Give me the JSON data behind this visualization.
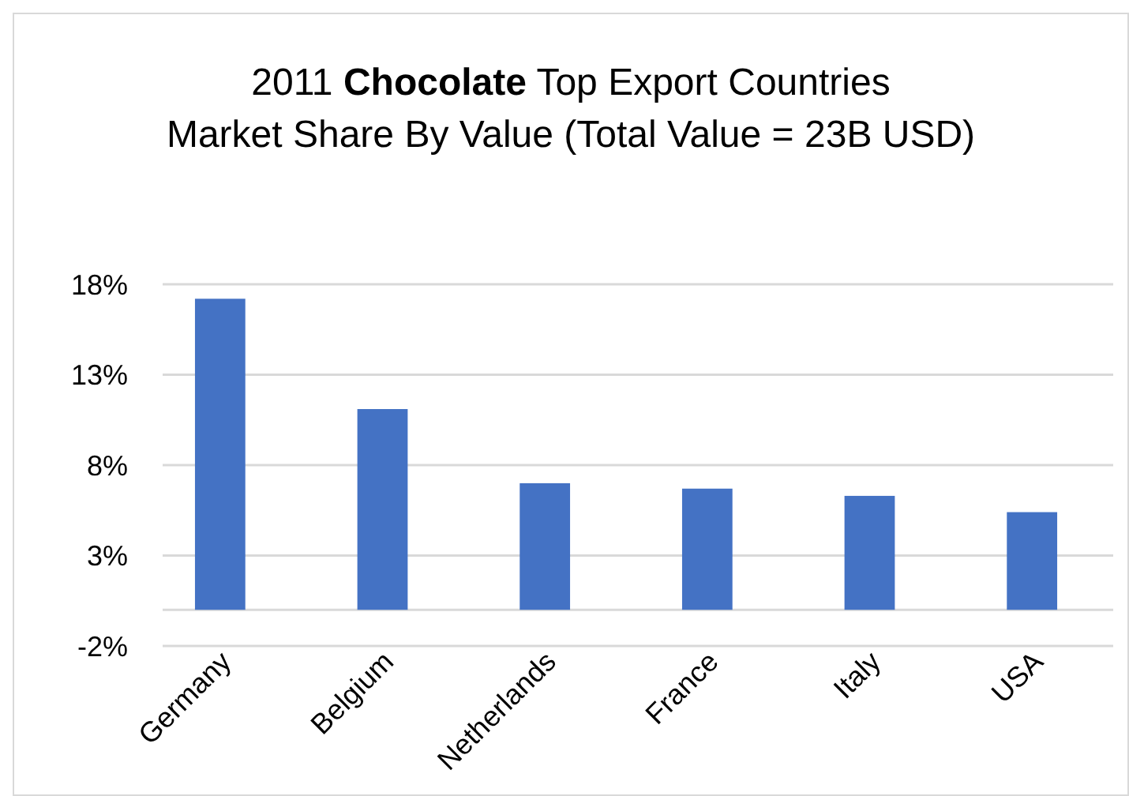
{
  "chart_data": {
    "type": "bar",
    "title": "2011 Chocolate Top Export Countries Market Share By Value (Total Value = 23B USD)",
    "categories": [
      "Germany",
      "Belgium",
      "Netherlands",
      "France",
      "Italy",
      "USA"
    ],
    "values": [
      17.2,
      11.1,
      7.0,
      6.7,
      6.3,
      5.4
    ],
    "color": "#4472c4",
    "ylim": [
      -2,
      18
    ],
    "yticks": [
      {
        "value": -2,
        "label": "-2%"
      },
      {
        "value": 3,
        "label": "3%"
      },
      {
        "value": 8,
        "label": "8%"
      },
      {
        "value": 13,
        "label": "13%"
      },
      {
        "value": 18,
        "label": "18%"
      }
    ],
    "grid": "y"
  }
}
